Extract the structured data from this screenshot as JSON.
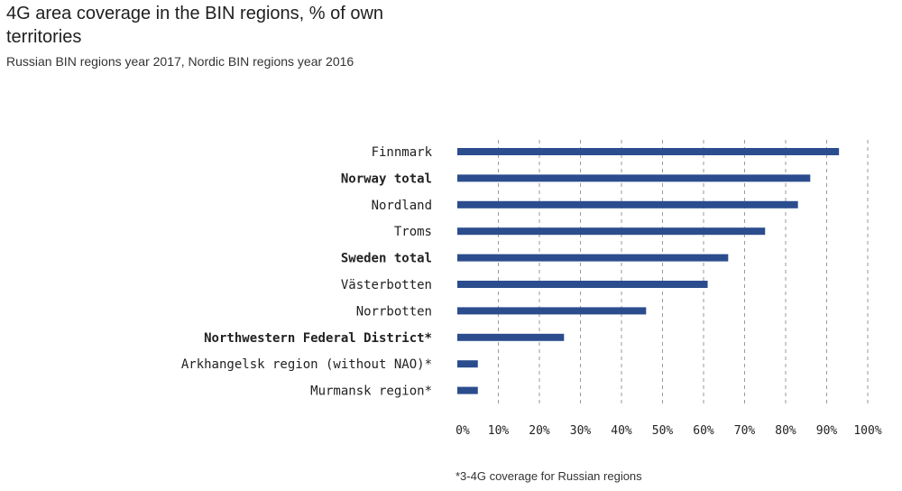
{
  "chart_data": {
    "type": "bar",
    "orientation": "horizontal",
    "title": "4G area coverage in the BIN regions, % of own territories",
    "subtitle": "Russian BIN regions year 2017, Nordic BIN regions year 2016",
    "categories": [
      "Finnmark",
      "Norway total",
      "Nordland",
      "Troms",
      "Sweden total",
      "Västerbotten",
      "Norrbotten",
      "Northwestern Federal District*",
      "Arkhangelsk region (without NAO)*",
      "Murmansk region*"
    ],
    "bold_categories": [
      "Norway total",
      "Sweden total",
      "Northwestern Federal District*"
    ],
    "values": [
      93,
      86,
      83,
      75,
      66,
      61,
      46,
      26,
      5,
      5
    ],
    "xlim": [
      0,
      100
    ],
    "x_ticks": [
      "0%",
      "10%",
      "20%",
      "30%",
      "40%",
      "50%",
      "60%",
      "70%",
      "80%",
      "90%",
      "100%"
    ],
    "grid": "vertical dashed",
    "bar_color": "#2b4d8e",
    "footnote": "*3-4G coverage for Russian regions"
  }
}
